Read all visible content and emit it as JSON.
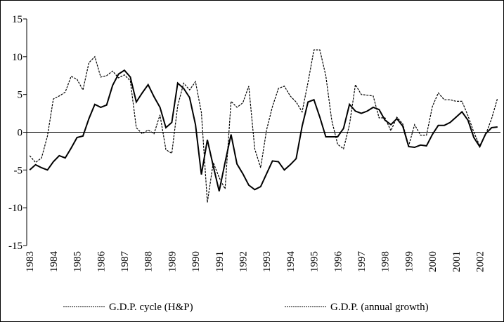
{
  "chart_data": {
    "type": "line",
    "categories": [
      "1983",
      null,
      null,
      null,
      "1984",
      null,
      null,
      null,
      "1985",
      null,
      null,
      null,
      "1986",
      null,
      null,
      null,
      "1987",
      null,
      null,
      null,
      "1988",
      null,
      null,
      null,
      "1989",
      null,
      null,
      null,
      "1990",
      null,
      null,
      null,
      "1991",
      null,
      null,
      null,
      "1992",
      null,
      null,
      null,
      "1993",
      null,
      null,
      null,
      "1994",
      null,
      null,
      null,
      "1995",
      null,
      null,
      null,
      "1996",
      null,
      null,
      null,
      "1997",
      null,
      null,
      null,
      "1998",
      null,
      null,
      null,
      "1999",
      null,
      null,
      null,
      "2000",
      null,
      null,
      null,
      "2001",
      null,
      null,
      null,
      "2002",
      null,
      null,
      null
    ],
    "series": [
      {
        "name": "G.D.P. cycle (H&P)",
        "color": "#000000",
        "dashed": false,
        "values": [
          -5.0,
          -4.3,
          -4.7,
          -5.0,
          -3.9,
          -3.1,
          -3.4,
          -2.1,
          -0.7,
          -0.5,
          1.8,
          3.7,
          3.3,
          3.6,
          6.2,
          7.7,
          8.2,
          7.3,
          4.0,
          5.2,
          6.3,
          4.7,
          3.3,
          0.6,
          1.3,
          6.5,
          5.8,
          4.6,
          1.0,
          -5.6,
          -1.0,
          -4.5,
          -7.8,
          -4.0,
          -0.3,
          -4.2,
          -5.5,
          -7.0,
          -7.6,
          -7.2,
          -5.5,
          -3.8,
          -3.9,
          -5.0,
          -4.3,
          -3.5,
          0.8,
          4.0,
          4.3,
          2.0,
          -0.6,
          -0.6,
          -0.6,
          0.5,
          3.7,
          2.8,
          2.5,
          2.8,
          3.3,
          3.0,
          1.6,
          1.0,
          1.8,
          0.8,
          -1.9,
          -2.0,
          -1.7,
          -1.8,
          -0.3,
          0.9,
          0.9,
          1.3,
          2.0,
          2.7,
          1.6,
          -0.7,
          -1.9,
          -0.2,
          0.6,
          0.7
        ]
      },
      {
        "name": "G.D.P. (annual growth)",
        "color": "#000000",
        "dashed": true,
        "values": [
          -3.1,
          -4.0,
          -3.4,
          -0.5,
          4.4,
          4.8,
          5.3,
          7.4,
          7.0,
          5.6,
          9.2,
          10.0,
          7.3,
          7.5,
          8.1,
          7.2,
          7.6,
          6.8,
          0.6,
          -0.2,
          0.3,
          -0.2,
          2.3,
          -2.3,
          -2.8,
          3.5,
          6.5,
          5.6,
          6.7,
          2.6,
          -9.3,
          -4.0,
          -6.0,
          -7.5,
          4.1,
          3.3,
          3.9,
          6.1,
          -2.2,
          -4.7,
          0.3,
          3.4,
          5.8,
          6.1,
          4.8,
          4.0,
          2.7,
          6.6,
          10.9,
          10.9,
          7.5,
          1.6,
          -1.6,
          -2.2,
          1.0,
          6.3,
          5.0,
          4.9,
          4.8,
          1.9,
          1.9,
          0.2,
          2.0,
          1.1,
          -1.8,
          1.0,
          -0.4,
          -0.4,
          3.4,
          5.2,
          4.3,
          4.3,
          4.1,
          4.1,
          2.2,
          0.0,
          -1.8,
          -0.3,
          1.8,
          4.5
        ]
      }
    ],
    "ylim": [
      -15,
      15
    ],
    "yticks": [
      -15,
      -10,
      -5,
      0,
      5,
      10,
      15
    ],
    "legend": "bottom"
  }
}
